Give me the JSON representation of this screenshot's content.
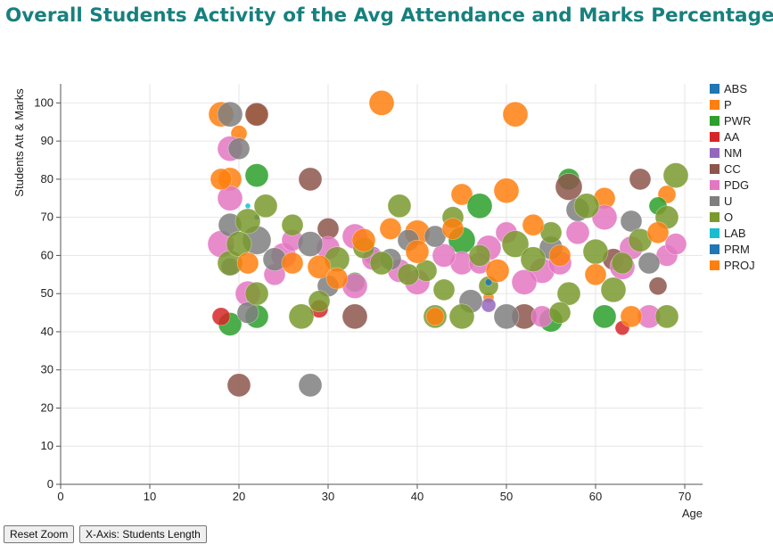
{
  "chart_data": {
    "type": "scatter",
    "title": "Overall Students Activity of the Avg Attendance and Marks Percentage",
    "xlabel": "Age",
    "ylabel": "Students Att & Marks",
    "xlim": [
      0,
      72
    ],
    "ylim": [
      0,
      105
    ],
    "x_ticks": [
      0,
      10,
      20,
      30,
      40,
      50,
      60,
      70
    ],
    "y_ticks": [
      0,
      10,
      20,
      30,
      40,
      50,
      60,
      70,
      80,
      90,
      100
    ],
    "grid": true,
    "legend_position": "right",
    "series": [
      {
        "name": "ABS",
        "color": "#1f77b4",
        "points": [
          [
            48,
            53,
            3
          ],
          [
            19,
            62,
            4
          ],
          [
            22,
            70,
            3
          ]
        ]
      },
      {
        "name": "P",
        "color": "#ff7f0e",
        "points": [
          [
            18,
            97,
            14
          ],
          [
            22,
            97,
            12
          ],
          [
            36,
            100,
            14
          ],
          [
            51,
            97,
            14
          ],
          [
            19,
            80,
            13
          ],
          [
            50,
            77,
            14
          ],
          [
            45,
            76,
            12
          ],
          [
            61,
            75,
            12
          ],
          [
            68,
            76,
            10
          ],
          [
            40,
            66,
            14
          ],
          [
            48,
            49,
            6
          ],
          [
            20,
            92,
            9
          ]
        ]
      },
      {
        "name": "PWR",
        "color": "#2ca02c",
        "points": [
          [
            22,
            81,
            13
          ],
          [
            19,
            42,
            13
          ],
          [
            22,
            44,
            13
          ],
          [
            47,
            73,
            14
          ],
          [
            55,
            43,
            13
          ],
          [
            61,
            44,
            13
          ],
          [
            45,
            64,
            15
          ],
          [
            57,
            80,
            12
          ],
          [
            33,
            53,
            11
          ],
          [
            67,
            73,
            10
          ]
        ]
      },
      {
        "name": "AA",
        "color": "#d62728",
        "points": [
          [
            29,
            46,
            10
          ],
          [
            63,
            41,
            8
          ],
          [
            18,
            44,
            10
          ]
        ]
      },
      {
        "name": "NM",
        "color": "#9467bd",
        "points": [
          [
            48,
            47,
            8
          ],
          [
            19,
            57,
            10
          ],
          [
            35,
            60,
            10
          ]
        ]
      },
      {
        "name": "CC",
        "color": "#8c564b",
        "points": [
          [
            20,
            26,
            13
          ],
          [
            28,
            80,
            13
          ],
          [
            57,
            78,
            15
          ],
          [
            65,
            80,
            12
          ],
          [
            22,
            97,
            13
          ],
          [
            67,
            52,
            10
          ],
          [
            30,
            67,
            12
          ],
          [
            52,
            44,
            14
          ],
          [
            33,
            44,
            14
          ],
          [
            62,
            59,
            12
          ]
        ]
      },
      {
        "name": "PDG",
        "color": "#e377c2",
        "points": [
          [
            19,
            88,
            14
          ],
          [
            19,
            75,
            14
          ],
          [
            18,
            63,
            15
          ],
          [
            33,
            52,
            14
          ],
          [
            40,
            53,
            14
          ],
          [
            45,
            58,
            13
          ],
          [
            54,
            56,
            14
          ],
          [
            61,
            70,
            14
          ],
          [
            66,
            44,
            13
          ],
          [
            25,
            60,
            14
          ],
          [
            30,
            62,
            13
          ],
          [
            35,
            59,
            12
          ],
          [
            43,
            60,
            13
          ],
          [
            52,
            53,
            14
          ],
          [
            58,
            66,
            13
          ],
          [
            64,
            62,
            13
          ],
          [
            68,
            60,
            12
          ],
          [
            21,
            50,
            14
          ],
          [
            26,
            64,
            12
          ],
          [
            38,
            56,
            13
          ],
          [
            48,
            62,
            14
          ],
          [
            56,
            58,
            13
          ],
          [
            63,
            57,
            14
          ],
          [
            69,
            63,
            12
          ],
          [
            47,
            58,
            12
          ],
          [
            24,
            55,
            12
          ],
          [
            50,
            66,
            12
          ],
          [
            33,
            65,
            14
          ],
          [
            54,
            44,
            12
          ]
        ]
      },
      {
        "name": "U",
        "color": "#7f7f7f",
        "points": [
          [
            19,
            97,
            14
          ],
          [
            28,
            26,
            13
          ],
          [
            20,
            88,
            12
          ],
          [
            22,
            64,
            16
          ],
          [
            46,
            48,
            13
          ],
          [
            50,
            44,
            14
          ],
          [
            19,
            68,
            13
          ],
          [
            28,
            63,
            14
          ],
          [
            37,
            59,
            12
          ],
          [
            42,
            65,
            12
          ],
          [
            55,
            62,
            13
          ],
          [
            66,
            58,
            12
          ],
          [
            30,
            52,
            12
          ],
          [
            58,
            72,
            13
          ],
          [
            24,
            59,
            13
          ],
          [
            64,
            69,
            12
          ],
          [
            21,
            45,
            12
          ],
          [
            39,
            64,
            12
          ]
        ]
      },
      {
        "name": "O",
        "color": "#7a9a2e",
        "points": [
          [
            69,
            81,
            14
          ],
          [
            38,
            73,
            13
          ],
          [
            59,
            73,
            14
          ],
          [
            27,
            44,
            14
          ],
          [
            45,
            44,
            14
          ],
          [
            62,
            51,
            14
          ],
          [
            68,
            44,
            13
          ],
          [
            42,
            44,
            13
          ],
          [
            26,
            68,
            12
          ],
          [
            31,
            59,
            14
          ],
          [
            36,
            58,
            13
          ],
          [
            41,
            56,
            12
          ],
          [
            44,
            70,
            12
          ],
          [
            51,
            63,
            15
          ],
          [
            53,
            59,
            14
          ],
          [
            57,
            50,
            13
          ],
          [
            60,
            61,
            14
          ],
          [
            65,
            64,
            13
          ],
          [
            68,
            70,
            13
          ],
          [
            22,
            50,
            13
          ],
          [
            19,
            58,
            14
          ],
          [
            21,
            69,
            14
          ],
          [
            29,
            48,
            12
          ],
          [
            34,
            62,
            12
          ],
          [
            39,
            55,
            12
          ],
          [
            43,
            51,
            12
          ],
          [
            47,
            60,
            12
          ],
          [
            55,
            66,
            12
          ],
          [
            63,
            58,
            12
          ],
          [
            20,
            63,
            14
          ],
          [
            23,
            73,
            13
          ],
          [
            48,
            52,
            11
          ],
          [
            56,
            45,
            12
          ]
        ]
      },
      {
        "name": "LAB",
        "color": "#17becf",
        "points": [
          [
            21,
            73,
            3
          ]
        ]
      },
      {
        "name": "PRM",
        "color": "#1f77b4",
        "points": [
          [
            48,
            53,
            4
          ]
        ]
      },
      {
        "name": "PROJ",
        "color": "#ff7f0e",
        "points": [
          [
            18,
            80,
            12
          ],
          [
            21,
            58,
            12
          ],
          [
            29,
            57,
            13
          ],
          [
            34,
            64,
            13
          ],
          [
            40,
            61,
            13
          ],
          [
            44,
            67,
            12
          ],
          [
            49,
            56,
            13
          ],
          [
            53,
            68,
            12
          ],
          [
            56,
            60,
            12
          ],
          [
            60,
            55,
            12
          ],
          [
            64,
            44,
            12
          ],
          [
            67,
            66,
            12
          ],
          [
            37,
            67,
            12
          ],
          [
            42,
            44,
            10
          ],
          [
            31,
            54,
            12
          ],
          [
            26,
            58,
            12
          ]
        ]
      }
    ]
  },
  "buttons": {
    "reset_zoom": "Reset Zoom",
    "x_axis": "X-Axis: Students Length"
  }
}
